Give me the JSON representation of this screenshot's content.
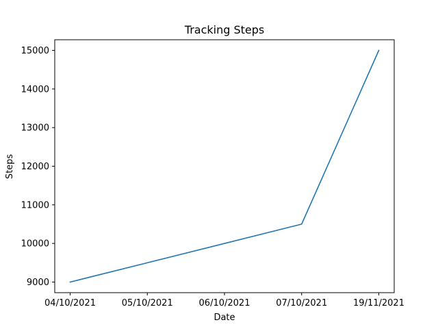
{
  "chart_data": {
    "type": "line",
    "title": "Tracking Steps",
    "xlabel": "Date",
    "ylabel": "Steps",
    "categories": [
      "04/10/2021",
      "05/10/2021",
      "06/10/2021",
      "07/10/2021",
      "19/11/2021"
    ],
    "series": [
      {
        "values": [
          9000,
          9500,
          10000,
          10500,
          15000
        ],
        "color": "#1f77b4"
      }
    ],
    "yticks": [
      9000,
      10000,
      11000,
      12000,
      13000,
      14000,
      15000
    ],
    "ylim": [
      8725,
      15275
    ],
    "grid": false,
    "legend": "none"
  }
}
